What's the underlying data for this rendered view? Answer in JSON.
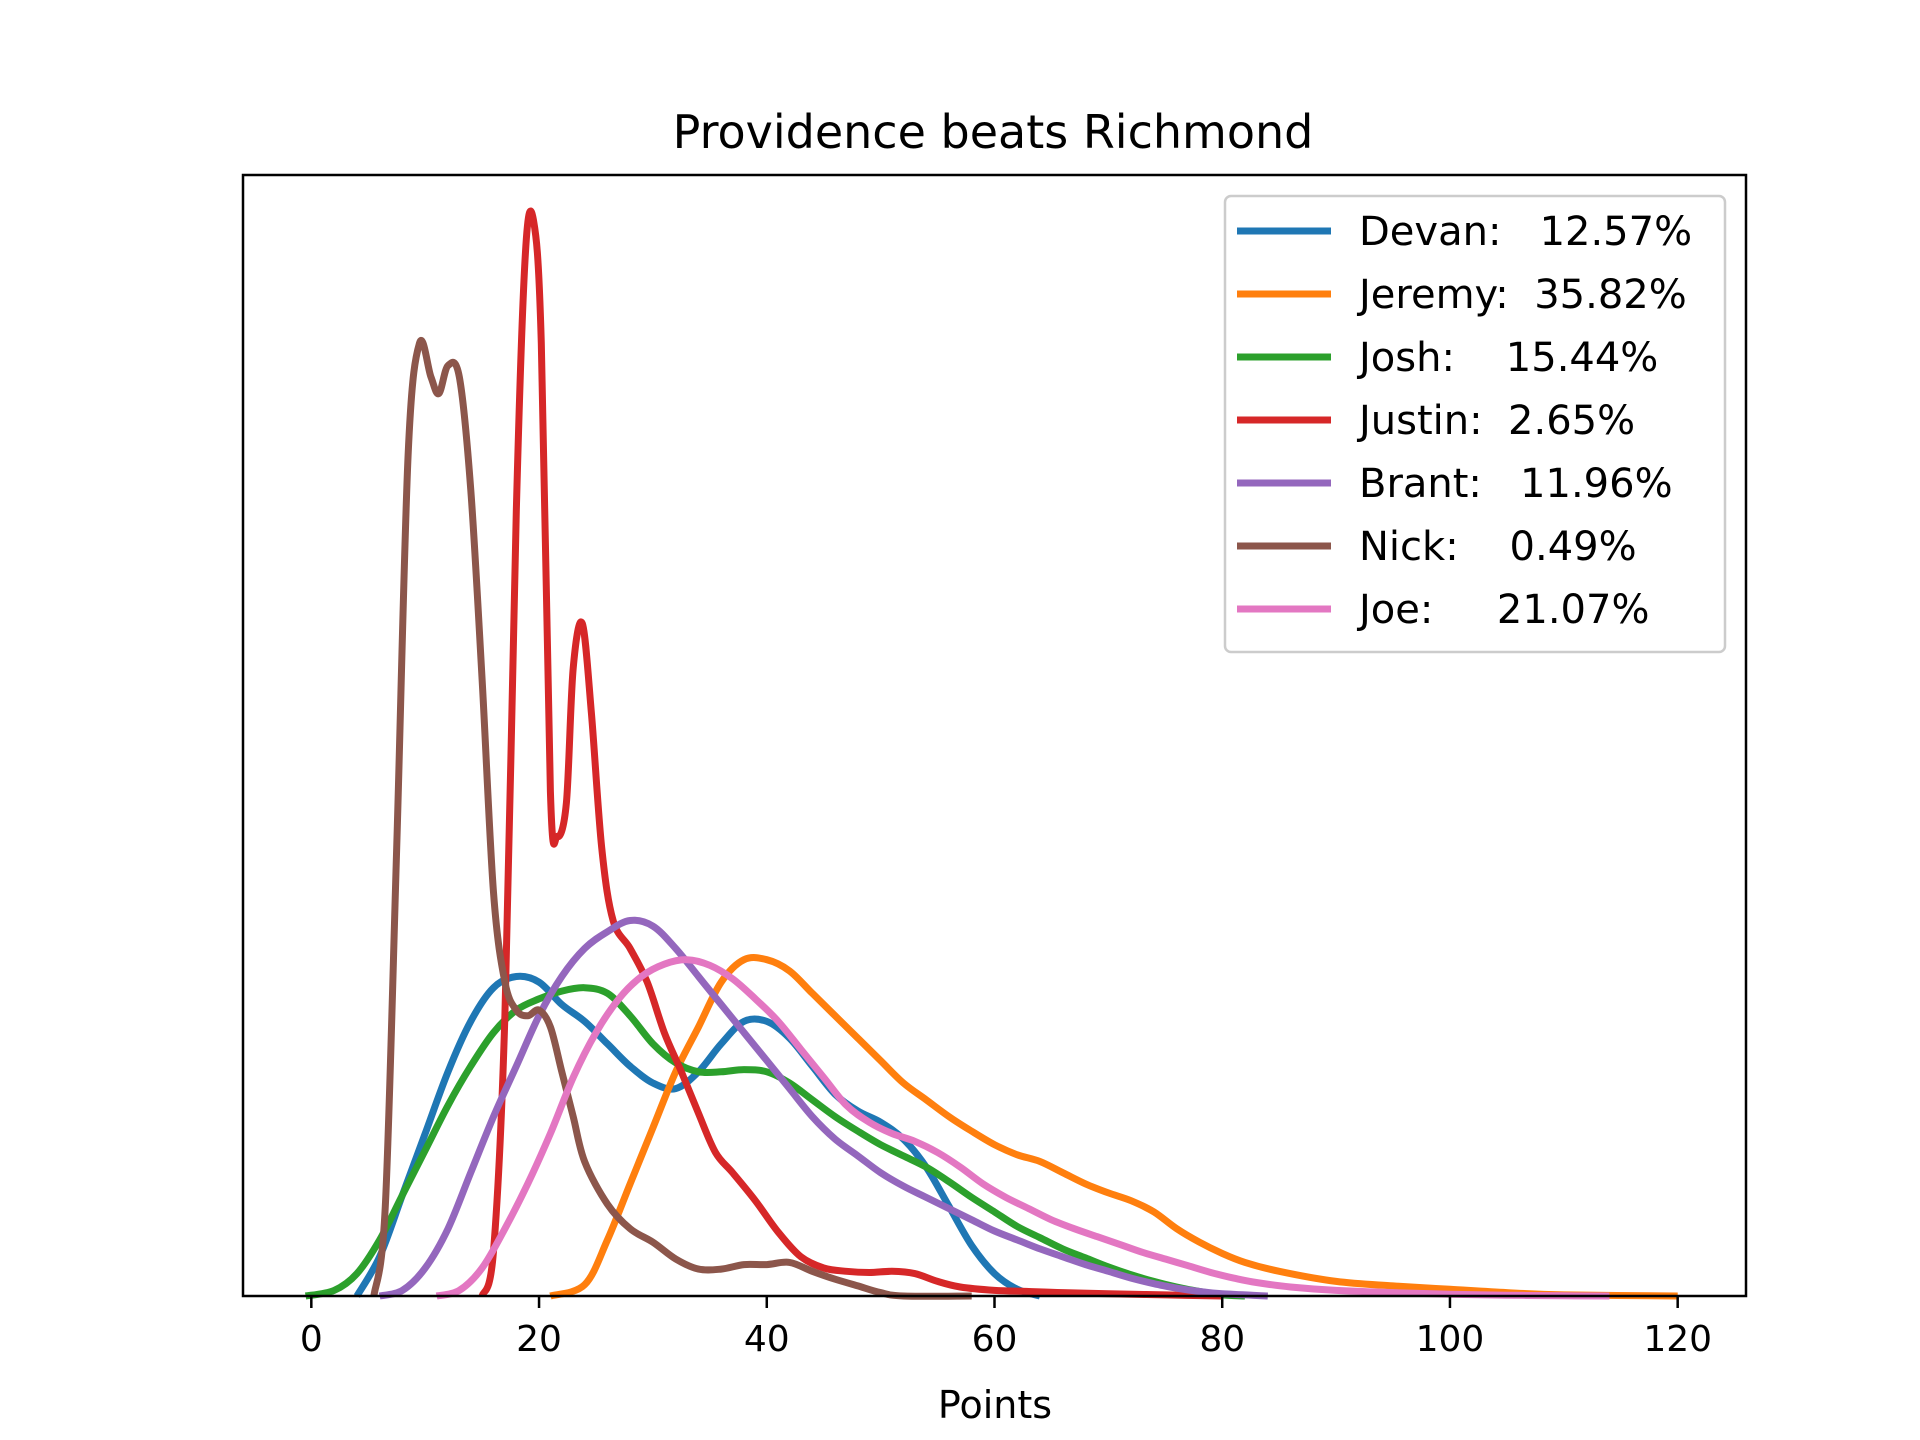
{
  "chart_data": {
    "type": "line",
    "title": "Providence beats Richmond",
    "xlabel": "Points",
    "ylabel": "",
    "xlim": [
      -6,
      126
    ],
    "ylim": [
      0,
      1
    ],
    "x_ticks": [
      0,
      20,
      40,
      60,
      80,
      100,
      120
    ],
    "y_ticks_shown": false,
    "grid": false,
    "legend_position": "top-right",
    "series": [
      {
        "name": "Devan",
        "label": "Devan:   12.57%",
        "color": "#1f77b4",
        "points": [
          [
            4,
            0
          ],
          [
            6,
            0.035
          ],
          [
            8,
            0.09
          ],
          [
            10,
            0.145
          ],
          [
            12,
            0.2
          ],
          [
            14,
            0.245
          ],
          [
            16,
            0.275
          ],
          [
            18,
            0.285
          ],
          [
            20,
            0.28
          ],
          [
            22,
            0.26
          ],
          [
            24,
            0.245
          ],
          [
            26,
            0.225
          ],
          [
            28,
            0.205
          ],
          [
            30,
            0.19
          ],
          [
            32,
            0.185
          ],
          [
            34,
            0.2
          ],
          [
            36,
            0.225
          ],
          [
            38,
            0.245
          ],
          [
            40,
            0.245
          ],
          [
            42,
            0.23
          ],
          [
            44,
            0.205
          ],
          [
            46,
            0.18
          ],
          [
            48,
            0.165
          ],
          [
            50,
            0.155
          ],
          [
            52,
            0.14
          ],
          [
            54,
            0.115
          ],
          [
            56,
            0.08
          ],
          [
            58,
            0.045
          ],
          [
            60,
            0.02
          ],
          [
            62,
            0.006
          ],
          [
            64,
            0
          ]
        ]
      },
      {
        "name": "Jeremy",
        "label": "Jeremy:  35.82%",
        "color": "#ff7f0e",
        "points": [
          [
            21,
            0
          ],
          [
            24,
            0.01
          ],
          [
            26,
            0.05
          ],
          [
            28,
            0.1
          ],
          [
            30,
            0.15
          ],
          [
            32,
            0.2
          ],
          [
            34,
            0.24
          ],
          [
            36,
            0.28
          ],
          [
            38,
            0.3
          ],
          [
            40,
            0.3
          ],
          [
            42,
            0.29
          ],
          [
            44,
            0.27
          ],
          [
            46,
            0.25
          ],
          [
            48,
            0.23
          ],
          [
            50,
            0.21
          ],
          [
            52,
            0.19
          ],
          [
            54,
            0.175
          ],
          [
            56,
            0.16
          ],
          [
            58,
            0.147
          ],
          [
            60,
            0.135
          ],
          [
            62,
            0.126
          ],
          [
            64,
            0.12
          ],
          [
            66,
            0.11
          ],
          [
            68,
            0.1
          ],
          [
            70,
            0.092
          ],
          [
            72,
            0.085
          ],
          [
            74,
            0.075
          ],
          [
            76,
            0.06
          ],
          [
            78,
            0.048
          ],
          [
            80,
            0.038
          ],
          [
            82,
            0.03
          ],
          [
            85,
            0.022
          ],
          [
            90,
            0.013
          ],
          [
            95,
            0.009
          ],
          [
            100,
            0.006
          ],
          [
            105,
            0.003
          ],
          [
            110,
            0.001
          ],
          [
            120,
            0
          ]
        ]
      },
      {
        "name": "Josh",
        "label": "Josh:    15.44%",
        "color": "#2ca02c",
        "points": [
          [
            -0.5,
            0
          ],
          [
            2,
            0.005
          ],
          [
            4,
            0.02
          ],
          [
            6,
            0.05
          ],
          [
            8,
            0.09
          ],
          [
            10,
            0.13
          ],
          [
            12,
            0.17
          ],
          [
            14,
            0.205
          ],
          [
            16,
            0.235
          ],
          [
            18,
            0.255
          ],
          [
            20,
            0.265
          ],
          [
            22,
            0.272
          ],
          [
            24,
            0.275
          ],
          [
            26,
            0.27
          ],
          [
            28,
            0.25
          ],
          [
            30,
            0.225
          ],
          [
            32,
            0.208
          ],
          [
            34,
            0.2
          ],
          [
            36,
            0.2
          ],
          [
            38,
            0.202
          ],
          [
            40,
            0.2
          ],
          [
            42,
            0.19
          ],
          [
            44,
            0.175
          ],
          [
            46,
            0.16
          ],
          [
            48,
            0.147
          ],
          [
            50,
            0.135
          ],
          [
            52,
            0.125
          ],
          [
            54,
            0.115
          ],
          [
            56,
            0.102
          ],
          [
            58,
            0.088
          ],
          [
            60,
            0.075
          ],
          [
            62,
            0.062
          ],
          [
            64,
            0.052
          ],
          [
            66,
            0.042
          ],
          [
            68,
            0.034
          ],
          [
            70,
            0.026
          ],
          [
            72,
            0.019
          ],
          [
            74,
            0.013
          ],
          [
            76,
            0.008
          ],
          [
            78,
            0.004
          ],
          [
            80,
            0.001
          ],
          [
            82,
            0
          ]
        ]
      },
      {
        "name": "Justin",
        "label": "Justin:  2.65%",
        "color": "#d62728",
        "points": [
          [
            15,
            0
          ],
          [
            16,
            0.04
          ],
          [
            17,
            0.25
          ],
          [
            18,
            0.7
          ],
          [
            18.8,
            0.93
          ],
          [
            19.5,
            0.96
          ],
          [
            20.2,
            0.85
          ],
          [
            21,
            0.45
          ],
          [
            21.6,
            0.41
          ],
          [
            22.4,
            0.44
          ],
          [
            23,
            0.56
          ],
          [
            23.8,
            0.6
          ],
          [
            24.6,
            0.52
          ],
          [
            25.5,
            0.4
          ],
          [
            26.5,
            0.335
          ],
          [
            28,
            0.31
          ],
          [
            29.5,
            0.28
          ],
          [
            31,
            0.235
          ],
          [
            32.5,
            0.2
          ],
          [
            34,
            0.163
          ],
          [
            35.5,
            0.128
          ],
          [
            37,
            0.11
          ],
          [
            39,
            0.085
          ],
          [
            41,
            0.057
          ],
          [
            43,
            0.035
          ],
          [
            45,
            0.025
          ],
          [
            47,
            0.022
          ],
          [
            49,
            0.021
          ],
          [
            51,
            0.022
          ],
          [
            53,
            0.02
          ],
          [
            55,
            0.013
          ],
          [
            57,
            0.008
          ],
          [
            60,
            0.005
          ],
          [
            63,
            0.004
          ],
          [
            66,
            0.003
          ],
          [
            70,
            0.002
          ],
          [
            75,
            0.001
          ],
          [
            80,
            0
          ]
        ]
      },
      {
        "name": "Brant",
        "label": "Brant:   11.96%",
        "color": "#9467bd",
        "points": [
          [
            6,
            0
          ],
          [
            8,
            0.005
          ],
          [
            10,
            0.025
          ],
          [
            12,
            0.06
          ],
          [
            14,
            0.11
          ],
          [
            16,
            0.16
          ],
          [
            18,
            0.205
          ],
          [
            20,
            0.25
          ],
          [
            22,
            0.285
          ],
          [
            24,
            0.31
          ],
          [
            26,
            0.325
          ],
          [
            28,
            0.335
          ],
          [
            30,
            0.33
          ],
          [
            32,
            0.31
          ],
          [
            34,
            0.285
          ],
          [
            36,
            0.26
          ],
          [
            38,
            0.235
          ],
          [
            40,
            0.21
          ],
          [
            42,
            0.185
          ],
          [
            44,
            0.16
          ],
          [
            46,
            0.14
          ],
          [
            48,
            0.125
          ],
          [
            50,
            0.11
          ],
          [
            52,
            0.098
          ],
          [
            54,
            0.088
          ],
          [
            56,
            0.078
          ],
          [
            58,
            0.068
          ],
          [
            60,
            0.058
          ],
          [
            62,
            0.05
          ],
          [
            64,
            0.042
          ],
          [
            66,
            0.035
          ],
          [
            68,
            0.028
          ],
          [
            70,
            0.022
          ],
          [
            72,
            0.016
          ],
          [
            74,
            0.011
          ],
          [
            76,
            0.007
          ],
          [
            78,
            0.004
          ],
          [
            80,
            0.002
          ],
          [
            84,
            0
          ]
        ]
      },
      {
        "name": "Nick",
        "label": "Nick:    0.49%",
        "color": "#8c564b",
        "points": [
          [
            5.5,
            0
          ],
          [
            6.5,
            0.08
          ],
          [
            7.5,
            0.4
          ],
          [
            8.5,
            0.75
          ],
          [
            9.5,
            0.85
          ],
          [
            10.5,
            0.82
          ],
          [
            11.2,
            0.805
          ],
          [
            12,
            0.83
          ],
          [
            13,
            0.82
          ],
          [
            14,
            0.72
          ],
          [
            15,
            0.55
          ],
          [
            16,
            0.36
          ],
          [
            17,
            0.28
          ],
          [
            18,
            0.255
          ],
          [
            19,
            0.25
          ],
          [
            20,
            0.255
          ],
          [
            21,
            0.24
          ],
          [
            22,
            0.2
          ],
          [
            23,
            0.16
          ],
          [
            24,
            0.12
          ],
          [
            26,
            0.082
          ],
          [
            28,
            0.06
          ],
          [
            30,
            0.048
          ],
          [
            32,
            0.033
          ],
          [
            34,
            0.024
          ],
          [
            36,
            0.024
          ],
          [
            38,
            0.028
          ],
          [
            40,
            0.028
          ],
          [
            42,
            0.03
          ],
          [
            44,
            0.022
          ],
          [
            46,
            0.015
          ],
          [
            48,
            0.009
          ],
          [
            50,
            0.003
          ],
          [
            52,
            0
          ],
          [
            58,
            0
          ]
        ]
      },
      {
        "name": "Joe",
        "label": "Joe:     21.07%",
        "color": "#e377c2",
        "points": [
          [
            11,
            0
          ],
          [
            13,
            0.005
          ],
          [
            15,
            0.025
          ],
          [
            17,
            0.06
          ],
          [
            19,
            0.1
          ],
          [
            21,
            0.145
          ],
          [
            23,
            0.195
          ],
          [
            25,
            0.235
          ],
          [
            27,
            0.265
          ],
          [
            29,
            0.285
          ],
          [
            31,
            0.296
          ],
          [
            33,
            0.3
          ],
          [
            35,
            0.295
          ],
          [
            37,
            0.283
          ],
          [
            39,
            0.265
          ],
          [
            41,
            0.245
          ],
          [
            43,
            0.22
          ],
          [
            45,
            0.195
          ],
          [
            47,
            0.17
          ],
          [
            49,
            0.155
          ],
          [
            51,
            0.145
          ],
          [
            53,
            0.138
          ],
          [
            55,
            0.128
          ],
          [
            57,
            0.115
          ],
          [
            59,
            0.1
          ],
          [
            61,
            0.088
          ],
          [
            63,
            0.078
          ],
          [
            65,
            0.068
          ],
          [
            67,
            0.06
          ],
          [
            69,
            0.053
          ],
          [
            71,
            0.046
          ],
          [
            73,
            0.039
          ],
          [
            75,
            0.033
          ],
          [
            77,
            0.027
          ],
          [
            79,
            0.021
          ],
          [
            81,
            0.016
          ],
          [
            83,
            0.012
          ],
          [
            86,
            0.008
          ],
          [
            90,
            0.005
          ],
          [
            95,
            0.003
          ],
          [
            100,
            0.0015
          ],
          [
            105,
            0.0007
          ],
          [
            110,
            0.0002
          ],
          [
            114,
            0
          ]
        ]
      }
    ]
  }
}
